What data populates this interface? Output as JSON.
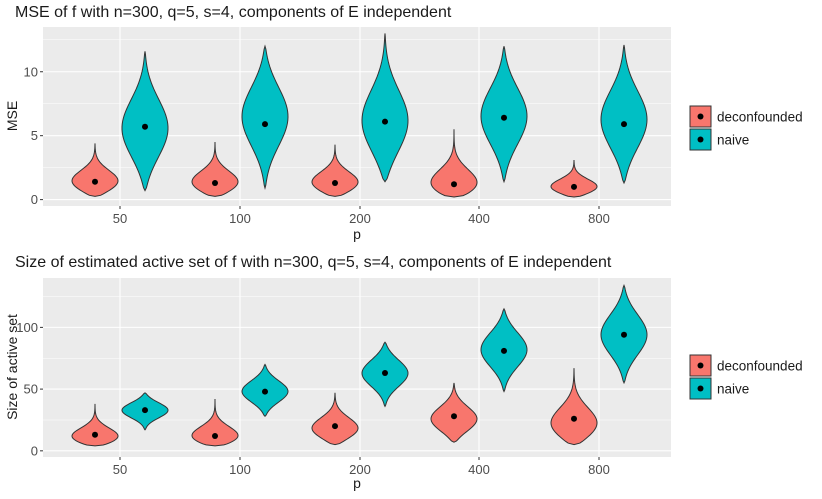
{
  "colors": {
    "deconfounded": "#F8766D",
    "naive": "#00BFC4",
    "panel": "#EBEBEB",
    "grid_major": "#FFFFFF",
    "text": "#1A1A1A",
    "tick_text": "#4D4D4D"
  },
  "chart_data": [
    {
      "type": "violin",
      "title": "MSE of f with n=300, q=5, s=4, components of E independent",
      "xlabel": "p",
      "ylabel": "MSE",
      "ylim": [
        -0.5,
        13.5
      ],
      "yticks": [
        0,
        5,
        10
      ],
      "ytick_labels": [
        "0",
        "5",
        "10"
      ],
      "categories": [
        "50",
        "100",
        "200",
        "400",
        "800"
      ],
      "legend": {
        "position": "right",
        "entries": [
          "deconfounded",
          "naive"
        ]
      },
      "series": [
        {
          "name": "deconfounded",
          "color_key": "deconfounded",
          "violins": [
            {
              "min": 0.25,
              "max": 4.4,
              "mode": 1.3,
              "median": 1.4
            },
            {
              "min": 0.25,
              "max": 4.5,
              "mode": 1.2,
              "median": 1.3
            },
            {
              "min": 0.25,
              "max": 4.3,
              "mode": 1.2,
              "median": 1.3
            },
            {
              "min": 0.2,
              "max": 5.5,
              "mode": 1.0,
              "median": 1.2
            },
            {
              "min": 0.2,
              "max": 3.1,
              "mode": 0.9,
              "median": 1.0
            }
          ]
        },
        {
          "name": "naive",
          "color_key": "naive",
          "violins": [
            {
              "min": 0.7,
              "max": 11.6,
              "mode": 5.5,
              "median": 5.7
            },
            {
              "min": 0.9,
              "max": 12.0,
              "mode": 6.5,
              "median": 5.9
            },
            {
              "min": 1.4,
              "max": 13.0,
              "mode": 6.0,
              "median": 6.1
            },
            {
              "min": 1.4,
              "max": 12.0,
              "mode": 6.5,
              "median": 6.4
            },
            {
              "min": 1.3,
              "max": 12.1,
              "mode": 6.2,
              "median": 5.9
            }
          ]
        }
      ]
    },
    {
      "type": "violin",
      "title": "Size of estimated active set of f with n=300, q=5, s=4, components of E independent",
      "xlabel": "p",
      "ylabel": "Size of active set",
      "ylim": [
        -5,
        140
      ],
      "yticks": [
        0,
        50,
        100
      ],
      "ytick_labels": [
        "0",
        "50",
        "100"
      ],
      "categories": [
        "50",
        "100",
        "200",
        "400",
        "800"
      ],
      "legend": {
        "position": "right",
        "entries": [
          "deconfounded",
          "naive"
        ]
      },
      "series": [
        {
          "name": "deconfounded",
          "color_key": "deconfounded",
          "violins": [
            {
              "min": 4,
              "max": 38,
              "mode": 10,
              "median": 13
            },
            {
              "min": 4,
              "max": 42,
              "mode": 10,
              "median": 12
            },
            {
              "min": 5,
              "max": 47,
              "mode": 17,
              "median": 20
            },
            {
              "min": 7,
              "max": 55,
              "mode": 25,
              "median": 28
            },
            {
              "min": 5,
              "max": 67,
              "mode": 20,
              "median": 26
            }
          ]
        },
        {
          "name": "naive",
          "color_key": "naive",
          "violins": [
            {
              "min": 17,
              "max": 47,
              "mode": 33,
              "median": 33
            },
            {
              "min": 28,
              "max": 70,
              "mode": 48,
              "median": 48
            },
            {
              "min": 36,
              "max": 88,
              "mode": 63,
              "median": 63
            },
            {
              "min": 48,
              "max": 115,
              "mode": 82,
              "median": 81
            },
            {
              "min": 55,
              "max": 134,
              "mode": 94,
              "median": 94
            }
          ]
        }
      ]
    }
  ]
}
